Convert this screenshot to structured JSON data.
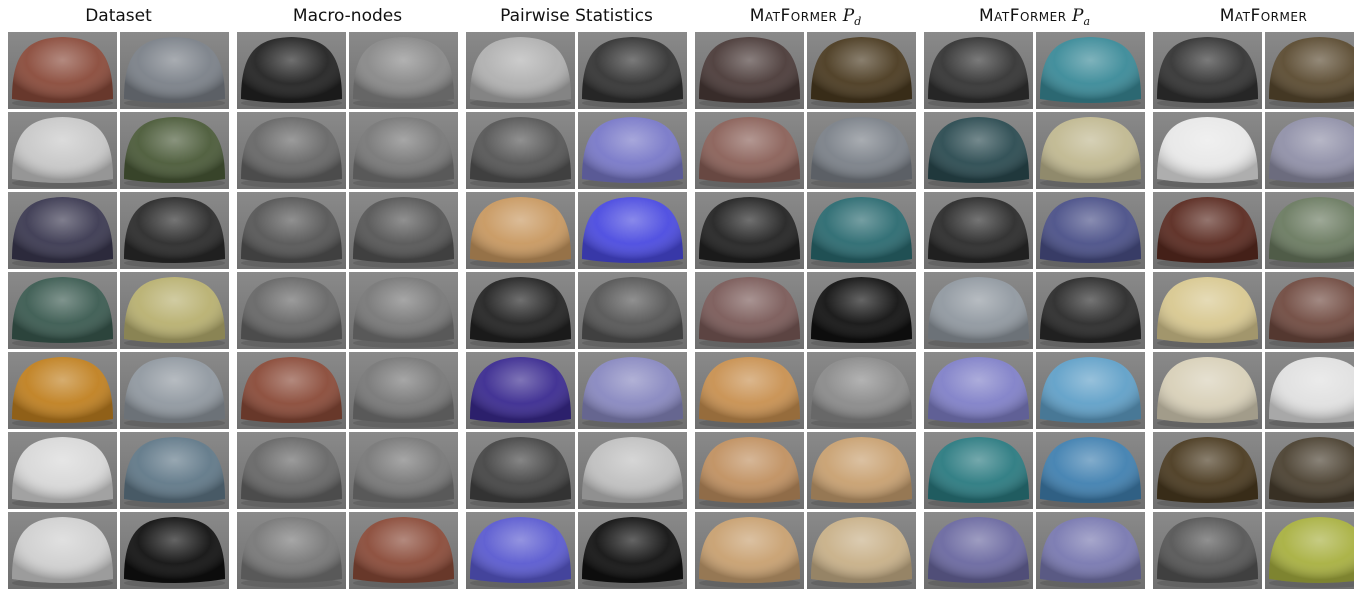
{
  "columns": [
    {
      "title": "Dataset"
    },
    {
      "title": "Macro-nodes"
    },
    {
      "title": "Pairwise Statistics"
    },
    {
      "title": "MatFormer",
      "symbol": "P",
      "subscript": "d"
    },
    {
      "title": "MatFormer",
      "symbol": "P",
      "subscript": "a"
    },
    {
      "title": "MatFormer"
    }
  ]
}
